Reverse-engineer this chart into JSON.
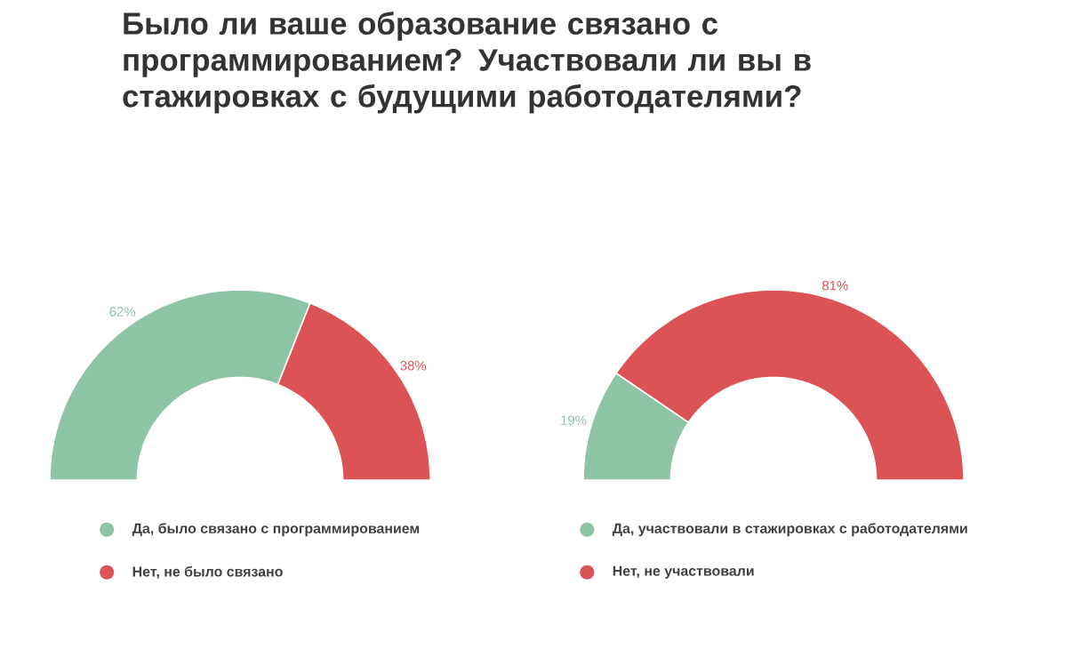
{
  "chart_data": [
    {
      "type": "donut",
      "title": "Было ли ваше образование связано с программированием? Участвовали ли вы в стажировках с будущими работодателями?",
      "categories": [
        "Да, было связано с программированием",
        "Нет, не было связано"
      ],
      "values": [
        62,
        38
      ],
      "value_labels": [
        "62%",
        "38%"
      ],
      "colors": [
        "#8ec4a6",
        "#dc5356"
      ],
      "legend": "bottom"
    },
    {
      "type": "donut",
      "categories": [
        "Да, участвовали в стажировках с работодателями",
        "Нет, не участвовали"
      ],
      "values": [
        19,
        81
      ],
      "value_labels": [
        "19%",
        "81%"
      ],
      "colors": [
        "#8ec4a6",
        "#dc5356"
      ],
      "legend": "bottom"
    }
  ]
}
